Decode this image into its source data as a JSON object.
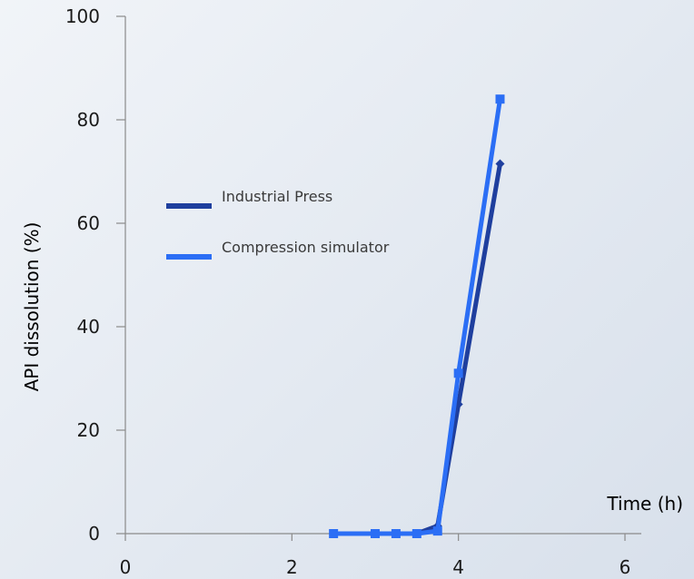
{
  "chart_data": {
    "type": "line",
    "xlabel": "Time (h)",
    "ylabel": "API dissolution (%)",
    "xlim": [
      0,
      6
    ],
    "ylim": [
      0,
      100
    ],
    "xticks": [
      "0",
      "2",
      "4",
      "6"
    ],
    "yticks": [
      "0",
      "20",
      "40",
      "60",
      "80",
      "100"
    ],
    "grid": false,
    "legend_position": "upper-left",
    "series": [
      {
        "name": "Industrial Press",
        "color": "#1f3f9e",
        "marker": "diamond",
        "x": [
          2.5,
          3.0,
          3.25,
          3.5,
          3.75,
          4.0,
          4.5
        ],
        "y": [
          0,
          0,
          0,
          0,
          1.5,
          25,
          71.5
        ]
      },
      {
        "name": "Compression simulator",
        "color": "#2b6ef5",
        "marker": "square",
        "x": [
          2.5,
          3.0,
          3.25,
          3.5,
          3.75,
          4.0,
          4.5
        ],
        "y": [
          0,
          0,
          0,
          0,
          0.5,
          31,
          84
        ]
      }
    ]
  }
}
